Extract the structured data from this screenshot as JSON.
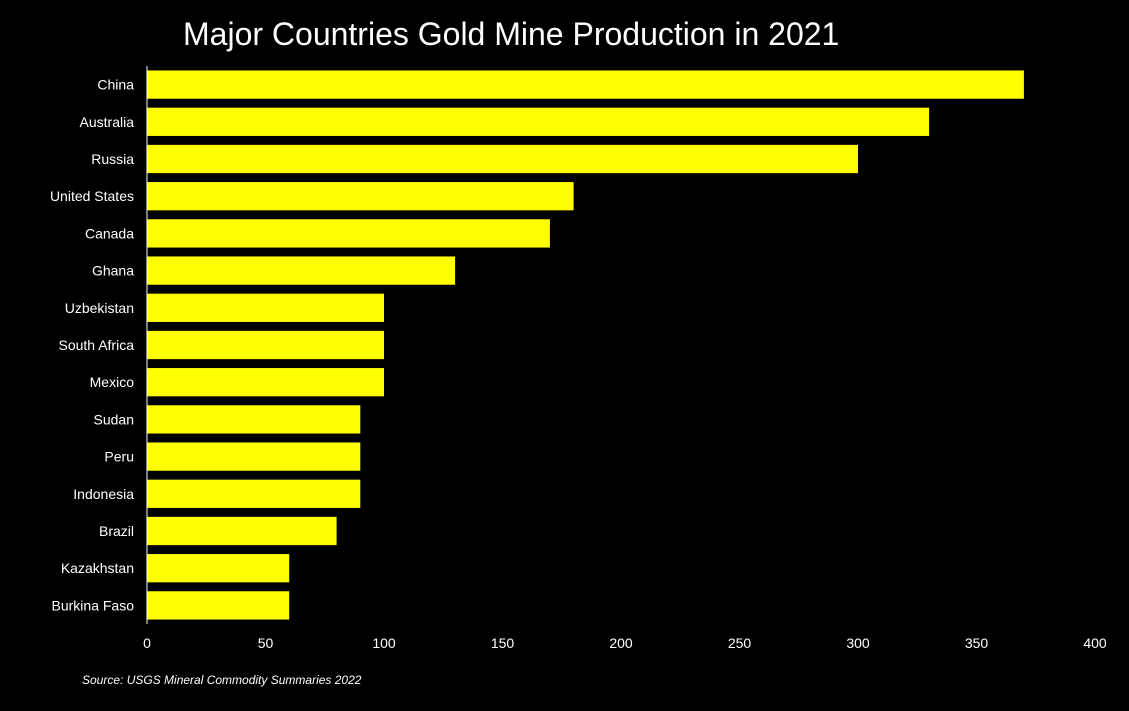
{
  "chart_data": {
    "type": "bar",
    "orientation": "horizontal",
    "title": "Major Countries Gold Mine Production in 2021",
    "categories": [
      "China",
      "Australia",
      "Russia",
      "United States",
      "Canada",
      "Ghana",
      "Uzbekistan",
      "South Africa",
      "Mexico",
      "Sudan",
      "Peru",
      "Indonesia",
      "Brazil",
      "Kazakhstan",
      "Burkina Faso"
    ],
    "values": [
      370,
      330,
      300,
      180,
      170,
      130,
      100,
      100,
      100,
      90,
      90,
      90,
      80,
      60,
      60
    ],
    "xlabel": "",
    "ylabel": "",
    "xlim": [
      0,
      400
    ],
    "xticks": [
      0,
      50,
      100,
      150,
      200,
      250,
      300,
      350,
      400
    ],
    "grid": false,
    "legend": "none",
    "source": "Source:  USGS Mineral Commodity Summaries 2022"
  },
  "colors": {
    "background": "#000000",
    "bar": "#ffff00",
    "text": "#ffffff",
    "axis": "#ffffff"
  }
}
